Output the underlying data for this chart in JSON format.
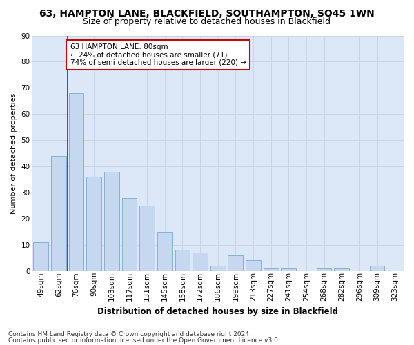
{
  "title1": "63, HAMPTON LANE, BLACKFIELD, SOUTHAMPTON, SO45 1WN",
  "title2": "Size of property relative to detached houses in Blackfield",
  "xlabel": "Distribution of detached houses by size in Blackfield",
  "ylabel": "Number of detached properties",
  "categories": [
    "49sqm",
    "62sqm",
    "76sqm",
    "90sqm",
    "103sqm",
    "117sqm",
    "131sqm",
    "145sqm",
    "158sqm",
    "172sqm",
    "186sqm",
    "199sqm",
    "213sqm",
    "227sqm",
    "241sqm",
    "254sqm",
    "268sqm",
    "282sqm",
    "296sqm",
    "309sqm",
    "323sqm"
  ],
  "values": [
    11,
    44,
    68,
    36,
    38,
    28,
    25,
    15,
    8,
    7,
    2,
    6,
    4,
    1,
    1,
    0,
    1,
    1,
    0,
    2,
    0
  ],
  "bar_color": "#c5d8f0",
  "bar_edge_color": "#7aaad0",
  "grid_color": "#c8d4e8",
  "background_color": "#ffffff",
  "plot_bg_color": "#dce8f8",
  "vline_color": "#cc0000",
  "annotation_text": "63 HAMPTON LANE: 80sqm\n← 24% of detached houses are smaller (71)\n74% of semi-detached houses are larger (220) →",
  "annotation_box_color": "white",
  "annotation_border_color": "#cc0000",
  "ylim": [
    0,
    90
  ],
  "yticks": [
    0,
    10,
    20,
    30,
    40,
    50,
    60,
    70,
    80,
    90
  ],
  "footer1": "Contains HM Land Registry data © Crown copyright and database right 2024.",
  "footer2": "Contains public sector information licensed under the Open Government Licence v3.0.",
  "title1_fontsize": 10,
  "title2_fontsize": 9,
  "xlabel_fontsize": 8.5,
  "ylabel_fontsize": 8,
  "tick_fontsize": 7.5,
  "annotation_fontsize": 7.5,
  "footer_fontsize": 6.5
}
